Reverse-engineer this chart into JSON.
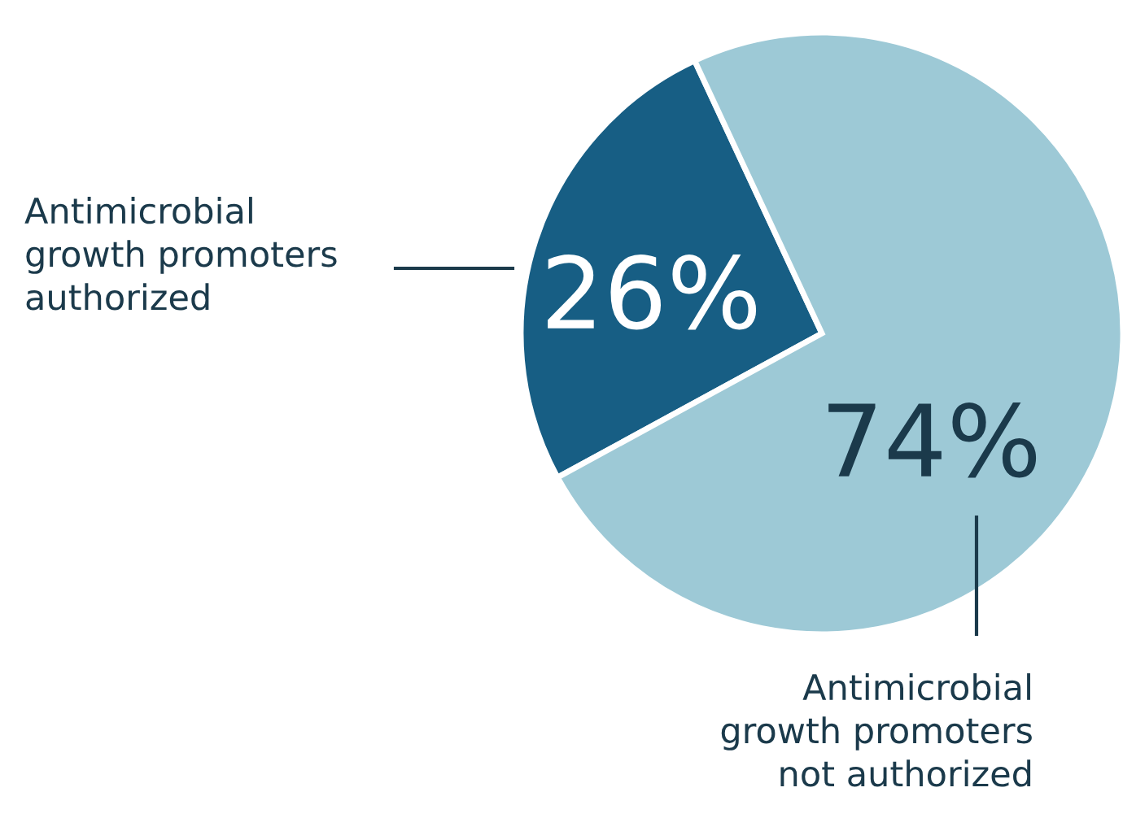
{
  "chart_data": {
    "type": "pie",
    "categories": [
      "Antimicrobial\ngrowth promoters\nauthorized",
      "Antimicrobial\ngrowth promoters\nnot authorized"
    ],
    "values": [
      26,
      74
    ],
    "colors": [
      "#175e84",
      "#9dc9d6"
    ],
    "value_labels": [
      "26%",
      "74%"
    ],
    "legend": false
  }
}
